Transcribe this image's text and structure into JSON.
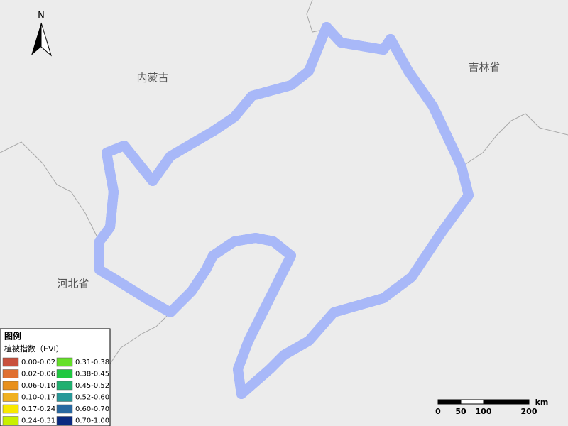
{
  "north_arrow": "N",
  "places": [
    "内蒙古",
    "吉林省",
    "河北省"
  ],
  "legend": {
    "title": "图例",
    "subtitle": "植被指数（EVI）",
    "items": [
      {
        "label": "0.00-0.02",
        "color": "#c8503c"
      },
      {
        "label": "0.02-0.06",
        "color": "#e07030"
      },
      {
        "label": "0.06-0.10",
        "color": "#e8901c"
      },
      {
        "label": "0.10-0.17",
        "color": "#f0b020"
      },
      {
        "label": "0.17-0.24",
        "color": "#f8e800"
      },
      {
        "label": "0.24-0.31",
        "color": "#c8f000"
      },
      {
        "label": "0.31-0.38",
        "color": "#64e028"
      },
      {
        "label": "0.38-0.45",
        "color": "#20c840"
      },
      {
        "label": "0.45-0.52",
        "color": "#20b070"
      },
      {
        "label": "0.52-0.60",
        "color": "#289898"
      },
      {
        "label": "0.60-0.70",
        "color": "#2868a0"
      },
      {
        "label": "0.70-1.00",
        "color": "#0a2a80"
      }
    ]
  },
  "scale_bar": {
    "unit": "km",
    "ticks": [
      0,
      50,
      100,
      200
    ]
  }
}
